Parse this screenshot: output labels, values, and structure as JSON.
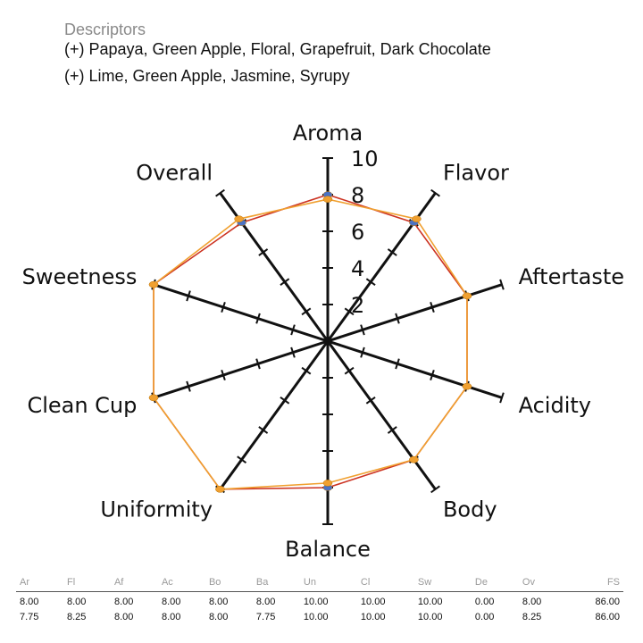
{
  "descriptors": {
    "heading": "Descriptors",
    "lines": [
      "(+) Papaya, Green Apple, Floral, Grapefruit, Dark Chocolate",
      "(+) Lime, Green Apple, Jasmine, Syrupy"
    ]
  },
  "chart_data": {
    "type": "radar",
    "axes": [
      "Aroma",
      "Flavor",
      "Aftertaste",
      "Acidity",
      "Body",
      "Balance",
      "Uniformity",
      "Clean Cup",
      "Sweetness",
      "Overall"
    ],
    "rlim": [
      0,
      10
    ],
    "tick_labels": [
      "2",
      "4",
      "6",
      "8",
      "10"
    ],
    "grid": false,
    "series": [
      {
        "values": [
          8.0,
          8.0,
          8.0,
          8.0,
          8.0,
          8.0,
          10.0,
          10.0,
          10.0,
          8.0
        ],
        "line_color": "#cc3322",
        "marker_color": "#4a72c4"
      },
      {
        "values": [
          7.75,
          8.25,
          8.0,
          8.0,
          8.0,
          7.75,
          10.0,
          10.0,
          10.0,
          8.25
        ],
        "line_color": "#f0a030",
        "marker_color": "#f0a030"
      }
    ]
  },
  "score_table": {
    "headers": [
      "Ar",
      "Fl",
      "Af",
      "Ac",
      "Bo",
      "Ba",
      "Un",
      "Cl",
      "Sw",
      "De",
      "Ov",
      "FS"
    ],
    "rows": [
      [
        "8.00",
        "8.00",
        "8.00",
        "8.00",
        "8.00",
        "8.00",
        "10.00",
        "10.00",
        "10.00",
        "0.00",
        "8.00",
        "86.00"
      ],
      [
        "7.75",
        "8.25",
        "8.00",
        "8.00",
        "8.00",
        "7.75",
        "10.00",
        "10.00",
        "10.00",
        "0.00",
        "8.25",
        "86.00"
      ]
    ]
  }
}
